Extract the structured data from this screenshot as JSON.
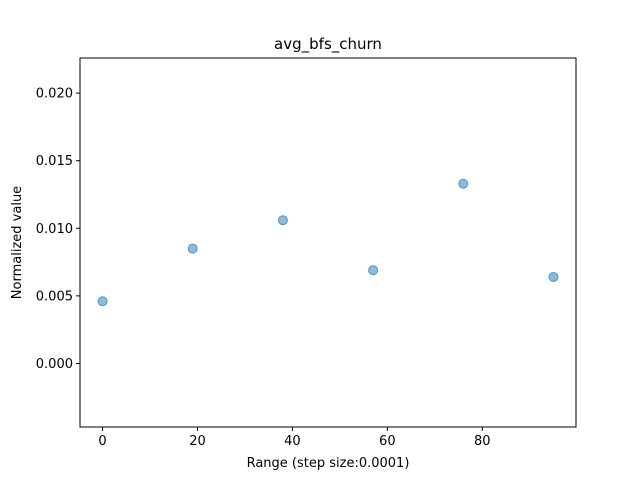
{
  "chart_data": {
    "type": "scatter",
    "title": "avg_bfs_churn",
    "xlabel": "Range (step size:0.0001)",
    "ylabel": "Normalized value",
    "x": [
      0,
      19,
      38,
      57,
      76,
      95
    ],
    "y": [
      0.0046,
      0.0085,
      0.0106,
      0.0069,
      0.0133,
      0.0064
    ],
    "xlim": [
      -4.75,
      99.75
    ],
    "ylim": [
      -0.0047,
      0.0226
    ],
    "xticks": [
      0,
      20,
      40,
      60,
      80
    ],
    "xtick_labels": [
      "0",
      "20",
      "40",
      "60",
      "80"
    ],
    "yticks": [
      0.0,
      0.005,
      0.01,
      0.015,
      0.02
    ],
    "ytick_labels": [
      "0.000",
      "0.005",
      "0.010",
      "0.015",
      "0.020"
    ],
    "grid": false,
    "point_color": "#1f77b4"
  }
}
